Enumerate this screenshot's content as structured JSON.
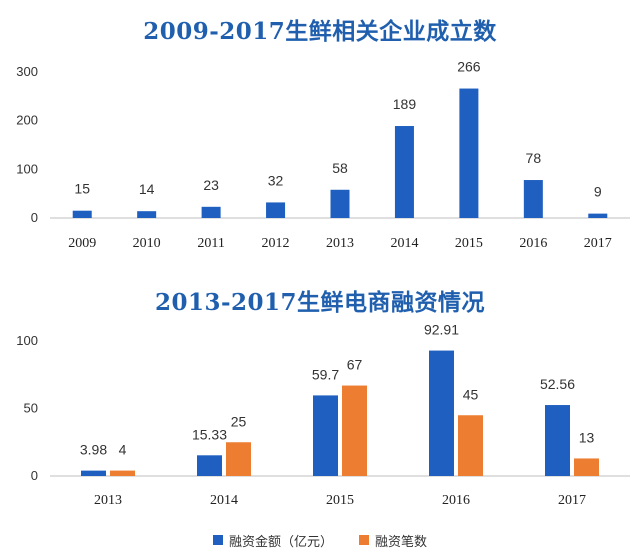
{
  "colors": {
    "title": "#1f5fae",
    "blue": "#1f5fc0",
    "orange": "#ed7d31"
  },
  "chart_data": [
    {
      "type": "bar",
      "title": "2009-2017生鲜相关企业成立数",
      "categories": [
        "2009",
        "2010",
        "2011",
        "2012",
        "2013",
        "2014",
        "2015",
        "2016",
        "2017"
      ],
      "values": [
        15,
        14,
        23,
        32,
        58,
        189,
        266,
        78,
        9
      ],
      "ylim": [
        0,
        300
      ],
      "yticks": [
        0,
        100,
        200,
        300
      ],
      "grid": false,
      "legend": "none"
    },
    {
      "type": "bar",
      "title": "2013-2017生鲜电商融资情况",
      "categories": [
        "2013",
        "2014",
        "2015",
        "2016",
        "2017"
      ],
      "series": [
        {
          "name": "融资金额（亿元）",
          "values": [
            3.98,
            15.33,
            59.7,
            92.91,
            52.56
          ],
          "labels": [
            "3.98",
            "15.33",
            "59.7",
            "92.91",
            "52.56"
          ]
        },
        {
          "name": "融资笔数",
          "values": [
            4,
            25,
            67,
            45,
            13
          ],
          "labels": [
            "4",
            "25",
            "67",
            "45",
            "13"
          ]
        }
      ],
      "ylim": [
        0,
        100
      ],
      "yticks": [
        0,
        50,
        100
      ],
      "grid": false,
      "legend": "bottom"
    }
  ]
}
